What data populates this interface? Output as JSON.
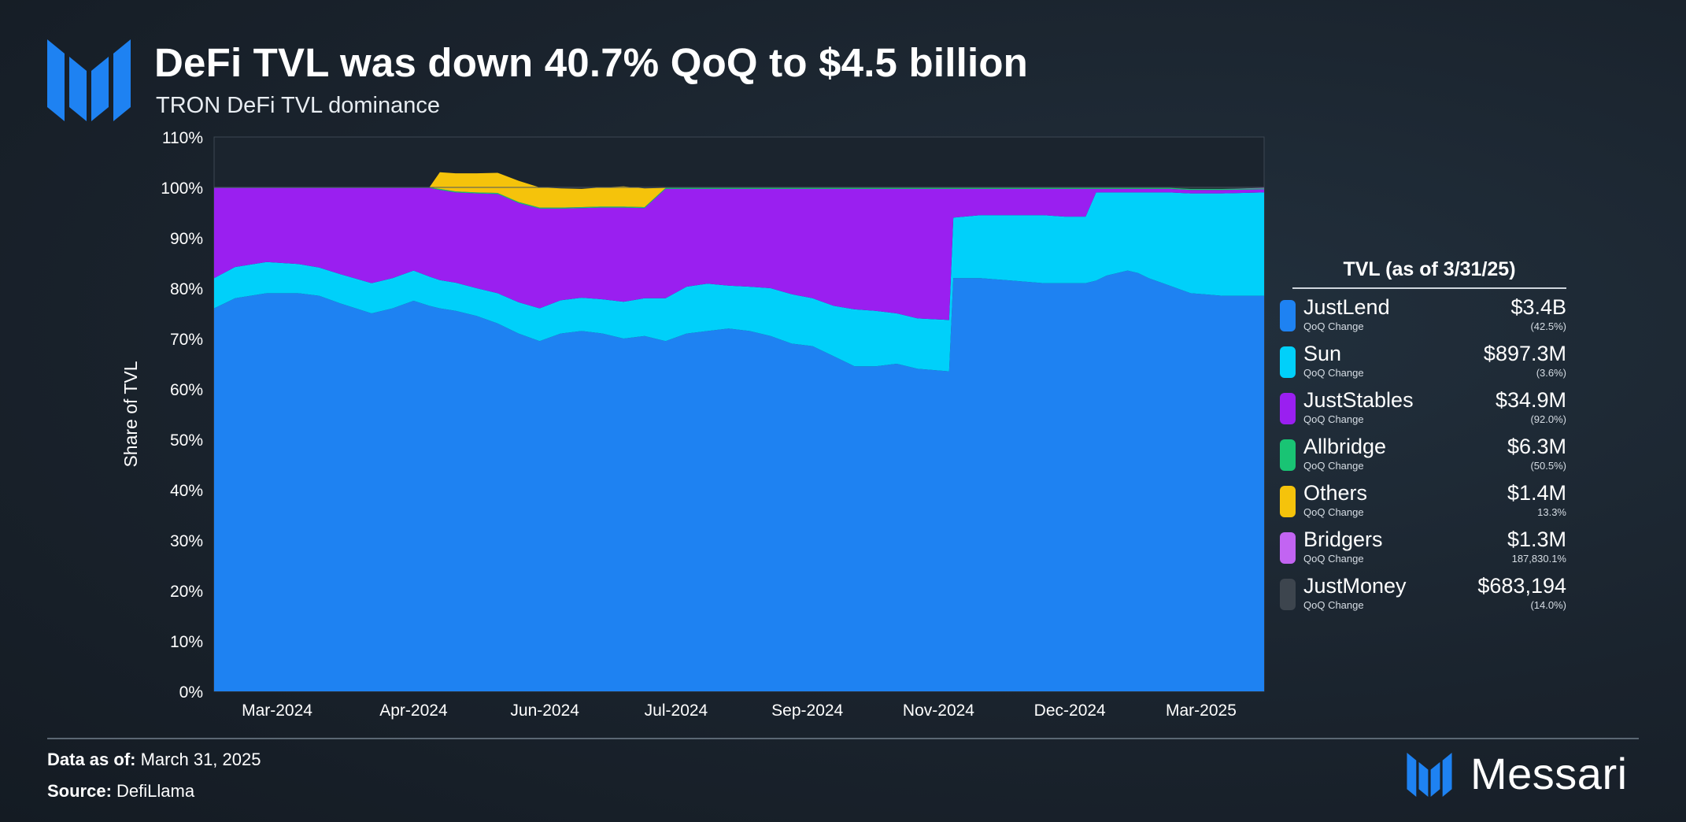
{
  "header": {
    "title": "DeFi TVL was down 40.7% QoQ to $4.5 billion",
    "subtitle": "TRON DeFi TVL dominance"
  },
  "colors": {
    "JustLend": "#1e82f2",
    "Sun": "#00d0fa",
    "JustStables": "#9a1ff0",
    "Allbridge": "#19c474",
    "Others": "#f5c30b",
    "Bridgers": "#c264f2",
    "JustMoney": "#3d454e",
    "brand": "#1e82f2"
  },
  "chart_data": {
    "type": "area",
    "stacked": true,
    "normalized": true,
    "ylabel": "Share of TVL",
    "ylim": [
      0,
      110
    ],
    "yticks": [
      "0%",
      "10%",
      "20%",
      "30%",
      "40%",
      "50%",
      "60%",
      "70%",
      "80%",
      "90%",
      "100%",
      "110%"
    ],
    "xticks": [
      "Mar-2024",
      "Apr-2024",
      "Jun-2024",
      "Jul-2024",
      "Sep-2024",
      "Nov-2024",
      "Dec-2024",
      "Mar-2025"
    ],
    "xtick_pos": [
      0.06,
      0.19,
      0.315,
      0.44,
      0.565,
      0.69,
      0.815,
      0.94
    ],
    "x": [
      0.0,
      0.02,
      0.05,
      0.08,
      0.1,
      0.12,
      0.15,
      0.17,
      0.19,
      0.205,
      0.215,
      0.23,
      0.25,
      0.27,
      0.29,
      0.31,
      0.33,
      0.35,
      0.37,
      0.39,
      0.41,
      0.43,
      0.45,
      0.47,
      0.49,
      0.51,
      0.53,
      0.55,
      0.57,
      0.59,
      0.61,
      0.63,
      0.65,
      0.67,
      0.7,
      0.704,
      0.73,
      0.76,
      0.79,
      0.81,
      0.83,
      0.84,
      0.85,
      0.87,
      0.88,
      0.89,
      0.91,
      0.93,
      0.96,
      1.0
    ],
    "series": [
      {
        "name": "JustLend",
        "values": [
          76,
          78,
          79,
          79,
          78.5,
          77,
          75,
          76,
          77.5,
          76.5,
          76,
          75.5,
          74.5,
          73,
          71,
          69.5,
          71,
          71.5,
          71,
          70,
          70.5,
          69.5,
          71,
          71.5,
          72,
          71.5,
          70.5,
          69,
          68.5,
          66.5,
          64.5,
          64.5,
          65,
          64,
          63.5,
          82,
          82,
          81.5,
          81,
          81,
          81,
          81.5,
          82.5,
          83.5,
          83,
          82,
          80.5,
          79,
          78.5,
          78.5
        ]
      },
      {
        "name": "Sun",
        "values": [
          6,
          6.2,
          6.2,
          5.8,
          5.6,
          5.8,
          6,
          6,
          6,
          5.8,
          5.6,
          5.6,
          5.5,
          6,
          6.2,
          6.5,
          6.6,
          6.6,
          6.8,
          7.3,
          7.5,
          8.5,
          9.3,
          9.4,
          8.5,
          8.8,
          9.5,
          9.8,
          9.5,
          10,
          11.3,
          11,
          10,
          10,
          10.2,
          12,
          12.5,
          13,
          13.5,
          13.2,
          13.2,
          17.5,
          16.5,
          15.5,
          16,
          17,
          18.5,
          19.8,
          20.3,
          20.5
        ]
      },
      {
        "name": "JustStables",
        "values": [
          17.9,
          15.7,
          14.7,
          15.1,
          15.8,
          17.1,
          18.9,
          17.9,
          16.4,
          17.6,
          17.9,
          17.9,
          18.8,
          19.7,
          19.7,
          19.8,
          18.2,
          17.8,
          18.2,
          18.7,
          17.9,
          21.7,
          19.4,
          18.8,
          19.2,
          19.4,
          19.7,
          20.9,
          21.7,
          23.2,
          23.9,
          24.2,
          24.7,
          25.7,
          26.0,
          5.7,
          5.2,
          5.2,
          5.2,
          5.5,
          5.5,
          0.7,
          0.7,
          0.7,
          0.7,
          0.7,
          0.7,
          0.7,
          0.7,
          0.6
        ]
      },
      {
        "name": "Allbridge",
        "values": [
          0.1,
          0.1,
          0.1,
          0.1,
          0.1,
          0.1,
          0.1,
          0.1,
          0.1,
          0.1,
          0.2,
          0.2,
          0.2,
          0.2,
          0.2,
          0.2,
          0.2,
          0.2,
          0.2,
          0.2,
          0.2,
          0.2,
          0.2,
          0.2,
          0.2,
          0.2,
          0.2,
          0.2,
          0.2,
          0.2,
          0.2,
          0.2,
          0.2,
          0.2,
          0.2,
          0.2,
          0.2,
          0.2,
          0.2,
          0.2,
          0.2,
          0.2,
          0.2,
          0.2,
          0.2,
          0.2,
          0.2,
          0.2,
          0.2,
          0.2
        ]
      },
      {
        "name": "Others",
        "values": [
          0,
          0,
          0,
          0,
          0,
          0,
          0,
          0,
          0,
          0,
          3.3,
          3.6,
          3.8,
          4.0,
          4.2,
          4.0,
          3.8,
          3.6,
          3.8,
          4.0,
          3.7,
          0,
          0,
          0,
          0,
          0,
          0,
          0,
          0,
          0,
          0,
          0,
          0,
          0,
          0,
          0,
          0,
          0,
          0,
          0,
          0,
          0,
          0,
          0,
          0,
          0,
          0,
          0,
          0,
          0
        ]
      },
      {
        "name": "Bridgers",
        "values": [
          0,
          0,
          0,
          0,
          0,
          0,
          0,
          0,
          0,
          0,
          0,
          0,
          0,
          0,
          0,
          0,
          0,
          0,
          0,
          0,
          0,
          0,
          0,
          0,
          0,
          0,
          0,
          0,
          0,
          0,
          0,
          0,
          0,
          0,
          0,
          0,
          0,
          0,
          0,
          0,
          0,
          0,
          0,
          0,
          0,
          0,
          0,
          0,
          0,
          0.1
        ]
      },
      {
        "name": "JustMoney",
        "values": [
          0,
          0,
          0,
          0,
          0,
          0,
          0,
          0,
          0,
          0,
          0,
          0,
          0,
          0,
          0,
          0,
          0,
          0,
          0,
          0,
          0,
          0,
          0,
          0,
          0,
          0,
          0,
          0,
          0,
          0,
          0,
          0,
          0,
          0,
          0,
          0,
          0,
          0,
          0,
          0,
          0,
          0,
          0,
          0,
          0,
          0,
          0,
          0,
          0,
          0
        ]
      }
    ]
  },
  "legend": {
    "title": "TVL (as of 3/31/25)",
    "sub_label": "QoQ Change",
    "items": [
      {
        "name": "JustLend",
        "value": "$3.4B",
        "change": "(42.5%)"
      },
      {
        "name": "Sun",
        "value": "$897.3M",
        "change": "(3.6%)"
      },
      {
        "name": "JustStables",
        "value": "$34.9M",
        "change": "(92.0%)"
      },
      {
        "name": "Allbridge",
        "value": "$6.3M",
        "change": "(50.5%)"
      },
      {
        "name": "Others",
        "value": "$1.4M",
        "change": "13.3%"
      },
      {
        "name": "Bridgers",
        "value": "$1.3M",
        "change": "187,830.1%"
      },
      {
        "name": "JustMoney",
        "value": "$683,194",
        "change": "(14.0%)"
      }
    ]
  },
  "footer": {
    "data_as_of_label": "Data as of:",
    "data_as_of_value": " March 31, 2025",
    "source_label": "Source:",
    "source_value": " DefiLlama",
    "brand": "Messari"
  }
}
